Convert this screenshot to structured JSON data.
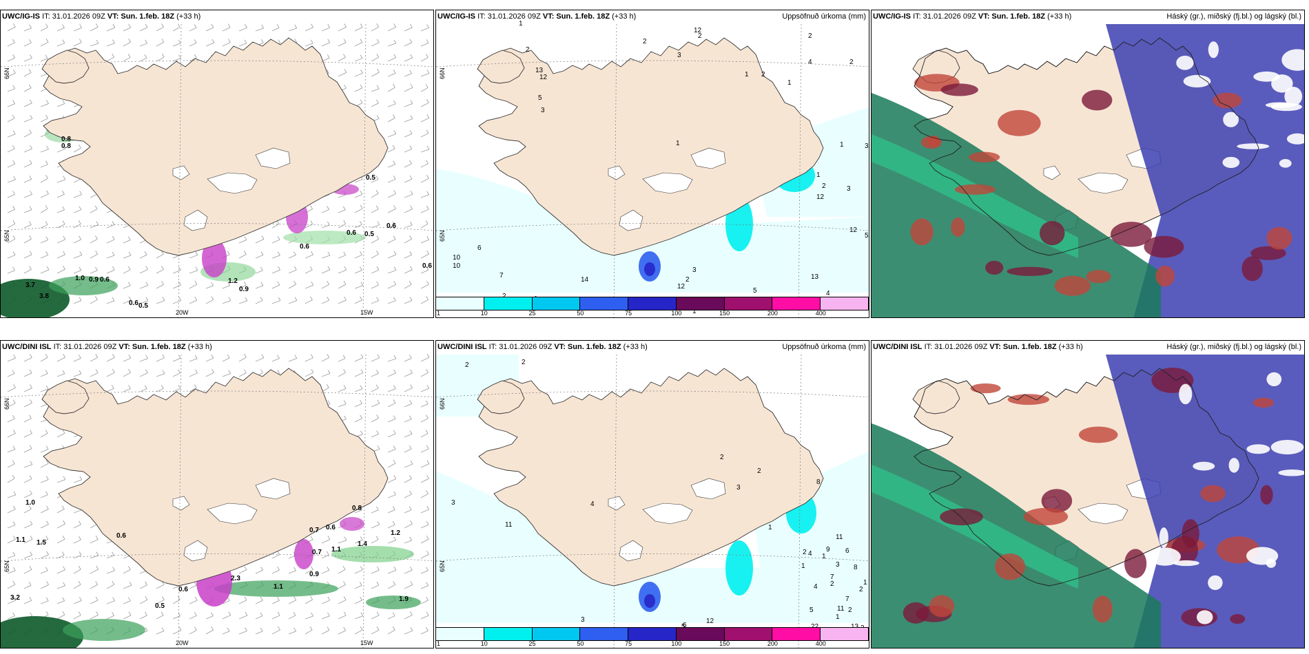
{
  "panels": [
    {
      "model": "UWC/IG-IS",
      "issue": "IT: 31.01.2026 09Z",
      "valid": "VT: Sun. 1.feb. 18Z",
      "lead": "(+33 h)",
      "title_right": "",
      "labels": [
        "0.8",
        "0.8",
        "0.5",
        "0.6",
        "0.6",
        "0.5",
        "0.6",
        "1.0",
        "0.9",
        "0.6",
        "3.7",
        "3.8",
        "0.6",
        "0.5",
        "1.2",
        "0.9",
        "0.6"
      ],
      "lon_labels": [
        "20W",
        "15W"
      ],
      "lat_labels": [
        "66N",
        "65N"
      ]
    },
    {
      "model": "UWC/IG-IS",
      "issue": "IT: 31.01.2026 09Z",
      "valid": "VT: Sun. 1.feb. 18Z",
      "lead": "(+33 h)",
      "title_right": "Uppsöfnuð úrkoma (mm)",
      "labels": [
        "1",
        "2",
        "2",
        "3",
        "2",
        "2",
        "4",
        "2",
        "1",
        "5",
        "3",
        "13",
        "12",
        "3",
        "1",
        "2",
        "1",
        "1",
        "2",
        "1",
        "3",
        "12",
        "15",
        "12",
        "5",
        "7",
        "13",
        "12",
        "10",
        "10",
        "3",
        "2",
        "6",
        "7",
        "2",
        "1",
        "3",
        "3",
        "4",
        "11",
        "14",
        "12",
        "5",
        "1",
        "2",
        "7"
      ],
      "colorbar": [
        "1",
        "10",
        "25",
        "50",
        "75",
        "100",
        "150",
        "200",
        "400"
      ],
      "lat_labels": [
        "66N",
        "65N"
      ]
    },
    {
      "model": "UWC/IG-IS",
      "issue": "IT: 31.01.2026 09Z",
      "valid": "VT: Sun. 1.feb. 18Z",
      "lead": "(+33 h)",
      "title_right": "Háský (gr.), miðský (fj.bl.) og lágský (bl.)"
    },
    {
      "model": "UWC/DINI ISL",
      "issue": "IT: 31.01.2026 09Z",
      "valid": "VT: Sun. 1.feb. 18Z",
      "lead": "(+33 h)",
      "title_right": "",
      "labels": [
        "1.0",
        "1.1",
        "1.5",
        "0.6",
        "0.5",
        "0.6",
        "0.8",
        "0.6",
        "0.7",
        "1.4",
        "1.2",
        "1.1",
        "0.7",
        "0.9",
        "1.1",
        "1.9",
        "3.2",
        "2.3"
      ],
      "lon_labels": [
        "20W",
        "15W"
      ],
      "lat_labels": [
        "66N",
        "65N"
      ]
    },
    {
      "model": "UWC/DINI ISL",
      "issue": "IT: 31.01.2026 09Z",
      "valid": "VT: Sun. 1.feb. 18Z",
      "lead": "(+33 h)",
      "title_right": "Uppsöfnuð úrkoma (mm)",
      "labels": [
        "2",
        "2",
        "3",
        "4",
        "11",
        "2",
        "3",
        "2",
        "8",
        "1",
        "2",
        "1",
        "1",
        "3",
        "4",
        "2",
        "5",
        "2",
        "1",
        "6",
        "12",
        "4",
        "6",
        "8",
        "11",
        "22",
        "13",
        "11",
        "2",
        "5",
        "2",
        "1",
        "6",
        "9",
        "4",
        "7",
        "7",
        "3",
        "2"
      ],
      "colorbar": [
        "1",
        "10",
        "25",
        "50",
        "75",
        "100",
        "150",
        "200",
        "400"
      ],
      "lat_labels": [
        "66N",
        "65N"
      ]
    },
    {
      "model": "UWC/DINI ISL",
      "issue": "IT: 31.01.2026 09Z",
      "valid": "VT: Sun. 1.feb. 18Z",
      "lead": "(+33 h)",
      "title_right": "Háský (gr.), miðský (fj.bl.) og lágský (bl.)"
    }
  ],
  "colorbar_colors": [
    "#e9ffff",
    "#00f0f0",
    "#00c8f0",
    "#2f5ff0",
    "#2626c8",
    "#6a0a5a",
    "#a0106e",
    "#ff0ea6",
    "#f8b4f0"
  ],
  "colors": {
    "land": "#f7e5d4",
    "wind": "#a0a0a0",
    "coast": "#333333",
    "green": "#1f9e4c",
    "magenta": "#c840c8"
  }
}
